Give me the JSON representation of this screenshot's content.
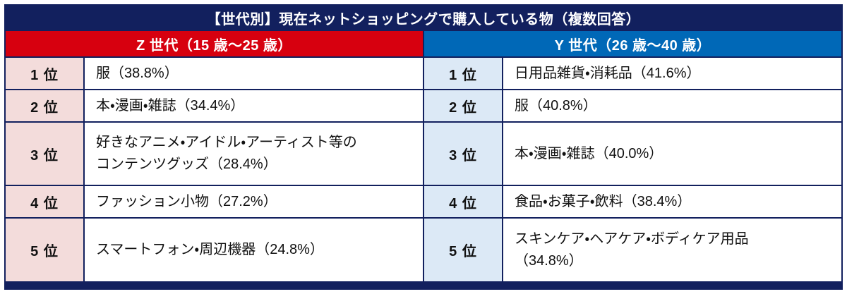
{
  "title": "【世代別】現在ネットショッピングで購入している物（複数回答）",
  "colors": {
    "frame_navy": "#12205e",
    "genz_red": "#d7000f",
    "geny_blue": "#0068b7",
    "genz_rank_bg": "#f3dcdb",
    "geny_rank_bg": "#dce9f6",
    "cell_bg": "#ffffff",
    "header_text": "#ffffff",
    "body_text": "#111111"
  },
  "columns": [
    {
      "header": "Z 世代（15 歳～25 歳）",
      "rows": [
        {
          "rank": "1 位",
          "item": "服（38.8%）"
        },
        {
          "rank": "2 位",
          "item": "本・漫画・雑誌（34.4%）"
        },
        {
          "rank": "3 位",
          "item": "好きなアニメ・アイドル・アーティスト等の\nコンテンツグッズ（28.4%）"
        },
        {
          "rank": "4 位",
          "item": "ファッション小物（27.2%）"
        },
        {
          "rank": "5 位",
          "item": "スマートフォン・周辺機器（24.8%）"
        }
      ]
    },
    {
      "header": "Y 世代（26 歳～40 歳）",
      "rows": [
        {
          "rank": "1 位",
          "item": "日用品雑貨・消耗品（41.6%）"
        },
        {
          "rank": "2 位",
          "item": "服（40.8%）"
        },
        {
          "rank": "3 位",
          "item": "本・漫画・雑誌（40.0%）"
        },
        {
          "rank": "4 位",
          "item": "食品・お菓子・飲料（38.4%）"
        },
        {
          "rank": "5 位",
          "item": "スキンケア・ヘアケア・ボディケア用品\n（34.8%）"
        }
      ]
    }
  ],
  "chart_data": {
    "type": "table",
    "title": "【世代別】現在ネットショッピングで購入している物（複数回答）",
    "groups": [
      {
        "name": "Z世代（15歳～25歳）",
        "ranking": [
          {
            "rank": 1,
            "item": "服",
            "percent": 38.8
          },
          {
            "rank": 2,
            "item": "本・漫画・雑誌",
            "percent": 34.4
          },
          {
            "rank": 3,
            "item": "好きなアニメ・アイドル・アーティスト等のコンテンツグッズ",
            "percent": 28.4
          },
          {
            "rank": 4,
            "item": "ファッション小物",
            "percent": 27.2
          },
          {
            "rank": 5,
            "item": "スマートフォン・周辺機器",
            "percent": 24.8
          }
        ]
      },
      {
        "name": "Y世代（26歳～40歳）",
        "ranking": [
          {
            "rank": 1,
            "item": "日用品雑貨・消耗品",
            "percent": 41.6
          },
          {
            "rank": 2,
            "item": "服",
            "percent": 40.8
          },
          {
            "rank": 3,
            "item": "本・漫画・雑誌",
            "percent": 40.0
          },
          {
            "rank": 4,
            "item": "食品・お菓子・飲料",
            "percent": 38.4
          },
          {
            "rank": 5,
            "item": "スキンケア・ヘアケア・ボディケア用品",
            "percent": 34.8
          }
        ]
      }
    ]
  }
}
